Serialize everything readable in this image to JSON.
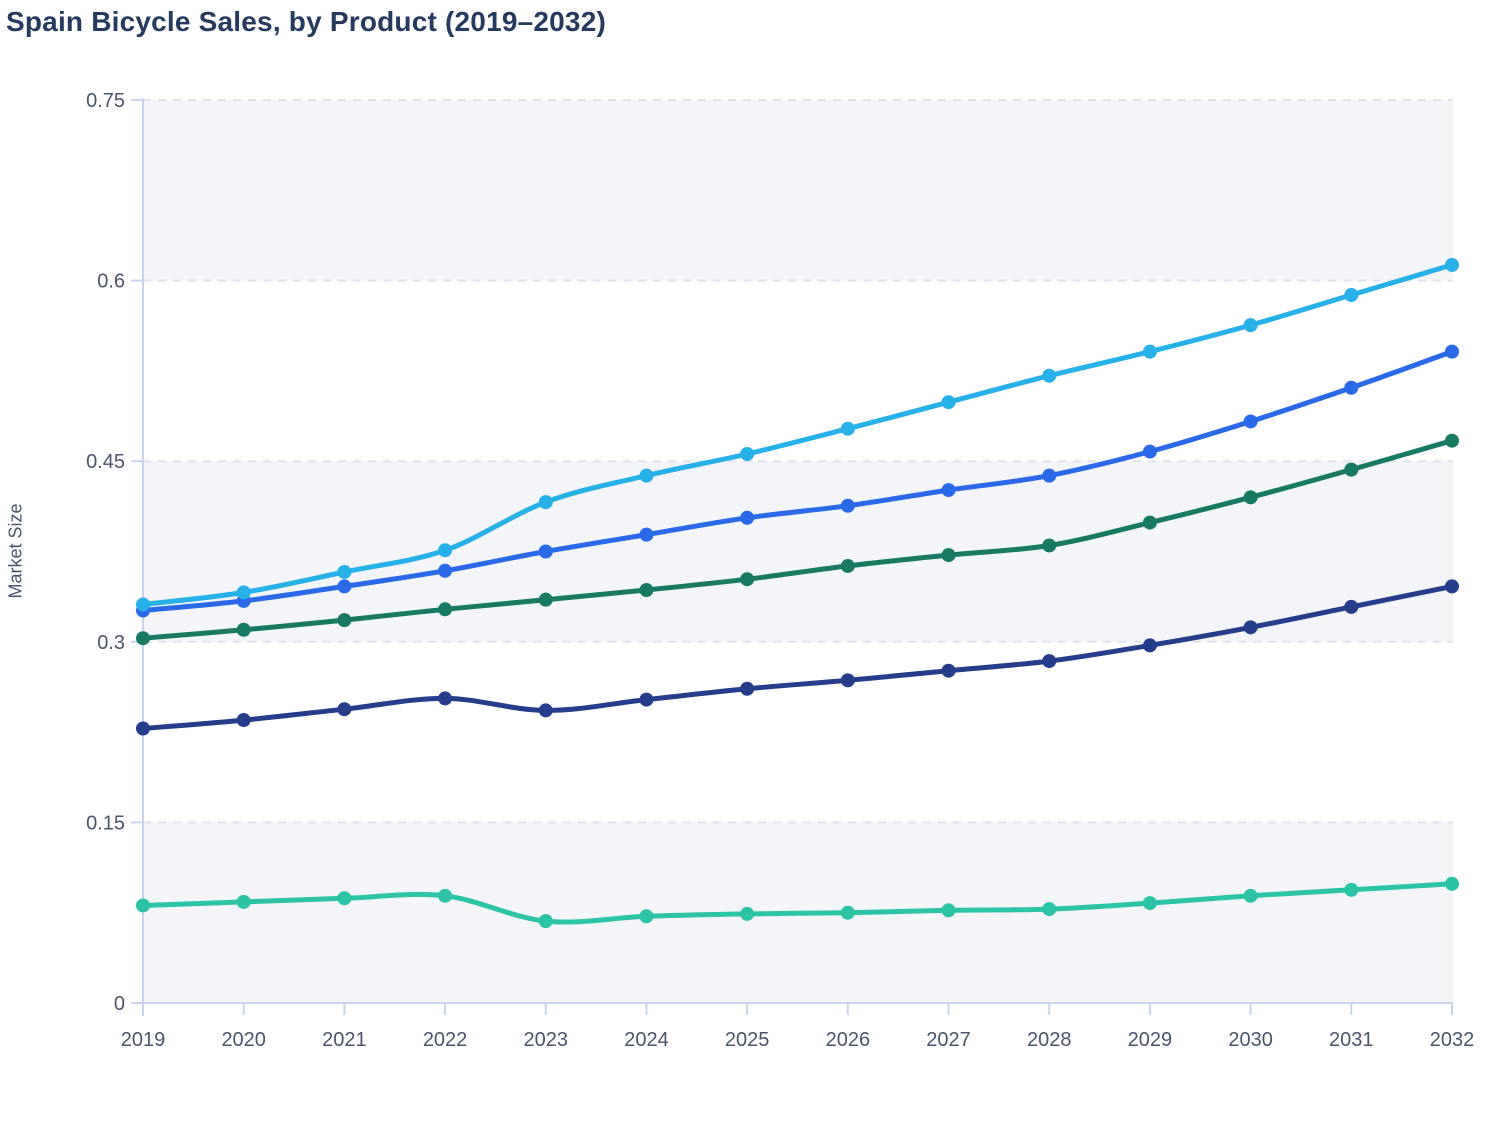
{
  "page": {
    "title": "Spain Bicycle Sales, by Product (2019–2032)"
  },
  "chart_data": {
    "type": "line",
    "title": "Spain Bicycle Sales, by Product (2019–2032)",
    "xlabel": "",
    "ylabel": "Market Size",
    "x": [
      2019,
      2020,
      2021,
      2022,
      2023,
      2024,
      2025,
      2026,
      2027,
      2028,
      2029,
      2030,
      2031,
      2032
    ],
    "x_tick_labels": [
      "2019",
      "2020",
      "2021",
      "2022",
      "2023",
      "2024",
      "2025",
      "2026",
      "2027",
      "2028",
      "2029",
      "2030",
      "2031",
      "2032"
    ],
    "y_ticks": [
      0,
      0.15,
      0.3,
      0.45,
      0.6,
      0.75
    ],
    "y_tick_labels": [
      "0",
      "0.15",
      "0.3",
      "0.45",
      "0.6",
      "0.75"
    ],
    "ylim": [
      0,
      0.75
    ],
    "grid": "horizontal-dashed",
    "legend": "none",
    "plot_background_bands": [
      [
        0,
        0.15
      ],
      [
        0.3,
        0.45
      ],
      [
        0.6,
        0.75
      ]
    ],
    "series": [
      {
        "id": "sky-blue",
        "color": "#27b1e8",
        "values": [
          0.331,
          0.341,
          0.358,
          0.376,
          0.416,
          0.438,
          0.456,
          0.477,
          0.499,
          0.521,
          0.541,
          0.563,
          0.588,
          0.613
        ]
      },
      {
        "id": "royal-blue",
        "color": "#2a69e8",
        "values": [
          0.326,
          0.334,
          0.346,
          0.359,
          0.375,
          0.389,
          0.403,
          0.413,
          0.426,
          0.438,
          0.458,
          0.483,
          0.511,
          0.541
        ]
      },
      {
        "id": "dark-green",
        "color": "#187a62",
        "values": [
          0.303,
          0.31,
          0.318,
          0.327,
          0.335,
          0.343,
          0.352,
          0.363,
          0.372,
          0.38,
          0.399,
          0.42,
          0.443,
          0.467
        ]
      },
      {
        "id": "navy",
        "color": "#263d8c",
        "values": [
          0.228,
          0.235,
          0.244,
          0.253,
          0.243,
          0.252,
          0.261,
          0.268,
          0.276,
          0.284,
          0.297,
          0.312,
          0.329,
          0.346
        ]
      },
      {
        "id": "teal",
        "color": "#2cc3a6",
        "values": [
          0.081,
          0.084,
          0.087,
          0.089,
          0.068,
          0.072,
          0.074,
          0.075,
          0.077,
          0.078,
          0.083,
          0.089,
          0.094,
          0.099
        ]
      }
    ]
  },
  "style": {
    "band_color": "#f3f5f9",
    "grid_color": "#dfe3ec",
    "axis_color": "#c9d4ec",
    "tick_label_color": "#4b556a"
  }
}
